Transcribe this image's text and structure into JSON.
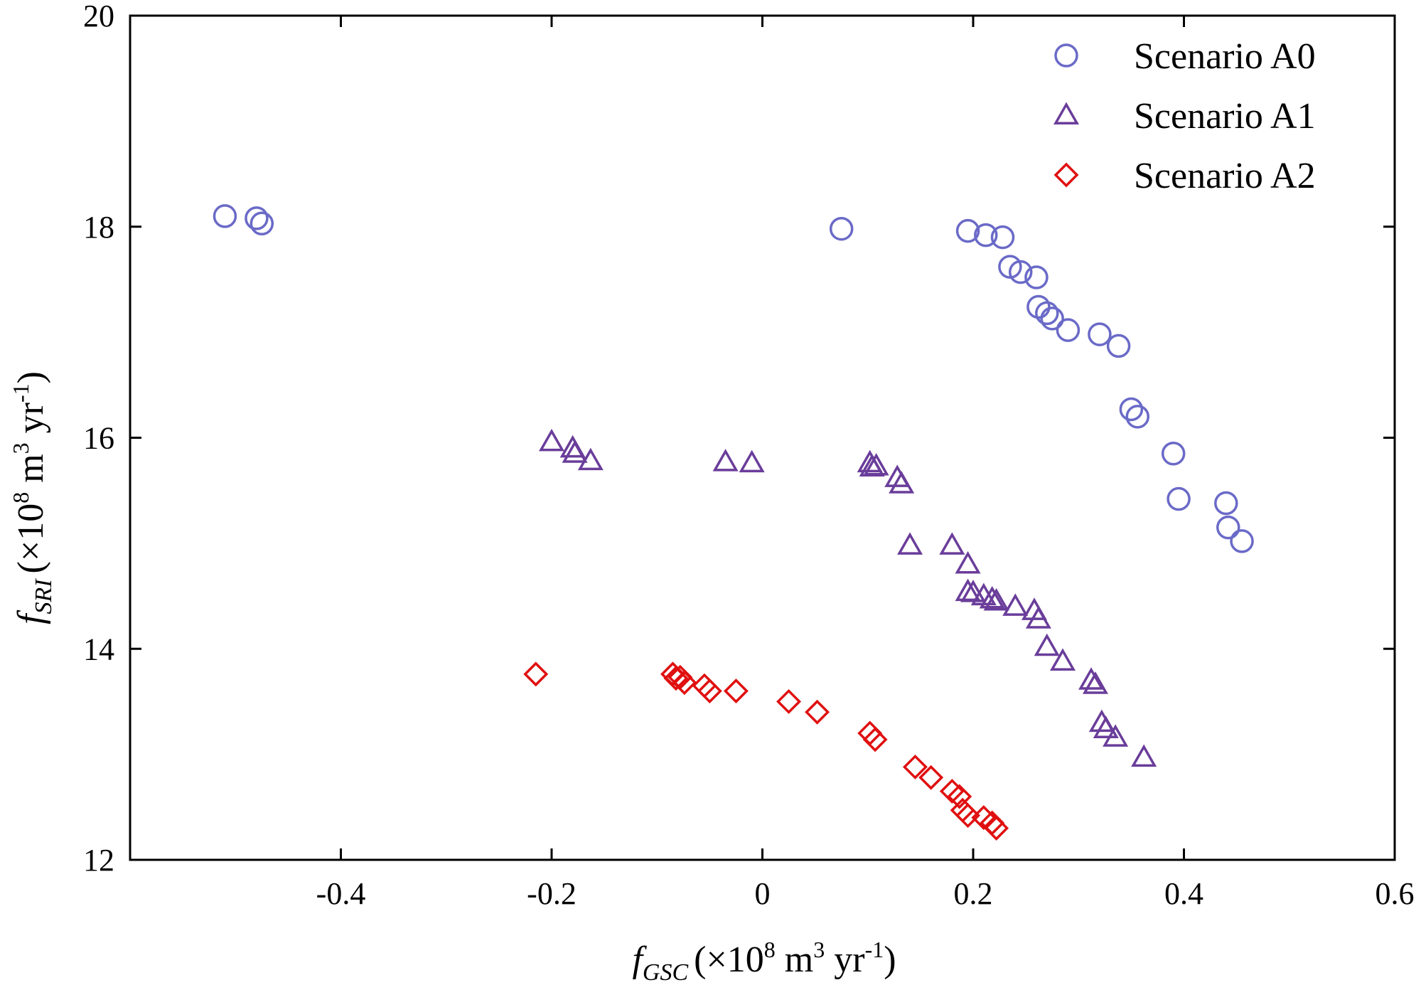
{
  "chart_data": {
    "type": "scatter",
    "x_axis": {
      "symbol": "f",
      "subscript": "GSC",
      "unit_prefix": "(×10",
      "unit_exp": "8",
      "unit_mid": " m",
      "unit_exp2": "3",
      "unit_mid2": " yr",
      "unit_exp3": "-1",
      "unit_suffix": ")",
      "range": [
        -0.6,
        0.6
      ],
      "ticks": [
        -0.4,
        -0.2,
        0,
        0.2,
        0.4,
        0.6
      ],
      "tick_labels": [
        "-0.4",
        "-0.2",
        "0",
        "0.2",
        "0.4",
        "0.6"
      ]
    },
    "y_axis": {
      "symbol": "f",
      "subscript": "SRI",
      "unit_prefix": "(×10",
      "unit_exp": "8",
      "unit_mid": " m",
      "unit_exp2": "3",
      "unit_mid2": " yr",
      "unit_exp3": "-1",
      "unit_suffix": ")",
      "range": [
        12,
        20
      ],
      "ticks": [
        12,
        14,
        16,
        18,
        20
      ],
      "tick_labels": [
        "12",
        "14",
        "16",
        "18",
        "20"
      ]
    },
    "legend_position": "top-right",
    "series": [
      {
        "name": "Scenario A0",
        "marker": "circle",
        "color": "#6a6ac8",
        "points": [
          [
            -0.51,
            18.1
          ],
          [
            -0.48,
            18.08
          ],
          [
            -0.475,
            18.03
          ],
          [
            0.075,
            17.98
          ],
          [
            0.195,
            17.96
          ],
          [
            0.212,
            17.92
          ],
          [
            0.228,
            17.9
          ],
          [
            0.235,
            17.62
          ],
          [
            0.245,
            17.57
          ],
          [
            0.26,
            17.52
          ],
          [
            0.262,
            17.24
          ],
          [
            0.27,
            17.18
          ],
          [
            0.275,
            17.13
          ],
          [
            0.29,
            17.02
          ],
          [
            0.32,
            16.98
          ],
          [
            0.338,
            16.87
          ],
          [
            0.35,
            16.27
          ],
          [
            0.356,
            16.2
          ],
          [
            0.39,
            15.85
          ],
          [
            0.395,
            15.42
          ],
          [
            0.44,
            15.38
          ],
          [
            0.442,
            15.15
          ],
          [
            0.455,
            15.02
          ]
        ]
      },
      {
        "name": "Scenario A1",
        "marker": "triangle",
        "color": "#6a3d9a",
        "points": [
          [
            -0.2,
            15.96
          ],
          [
            -0.18,
            15.9
          ],
          [
            -0.178,
            15.85
          ],
          [
            -0.163,
            15.78
          ],
          [
            -0.035,
            15.77
          ],
          [
            -0.01,
            15.76
          ],
          [
            0.102,
            15.76
          ],
          [
            0.104,
            15.72
          ],
          [
            0.108,
            15.73
          ],
          [
            0.128,
            15.62
          ],
          [
            0.132,
            15.56
          ],
          [
            0.14,
            14.98
          ],
          [
            0.18,
            14.98
          ],
          [
            0.195,
            14.8
          ],
          [
            0.195,
            14.54
          ],
          [
            0.2,
            14.53
          ],
          [
            0.21,
            14.5
          ],
          [
            0.218,
            14.47
          ],
          [
            0.222,
            14.45
          ],
          [
            0.24,
            14.4
          ],
          [
            0.258,
            14.36
          ],
          [
            0.262,
            14.28
          ],
          [
            0.27,
            14.02
          ],
          [
            0.285,
            13.88
          ],
          [
            0.312,
            13.7
          ],
          [
            0.316,
            13.66
          ],
          [
            0.322,
            13.3
          ],
          [
            0.326,
            13.24
          ],
          [
            0.335,
            13.16
          ],
          [
            0.362,
            12.97
          ]
        ]
      },
      {
        "name": "Scenario A2",
        "marker": "diamond",
        "color": "#e01010",
        "points": [
          [
            -0.215,
            13.76
          ],
          [
            -0.085,
            13.76
          ],
          [
            -0.082,
            13.72
          ],
          [
            -0.078,
            13.73
          ],
          [
            -0.074,
            13.68
          ],
          [
            -0.055,
            13.65
          ],
          [
            -0.05,
            13.6
          ],
          [
            -0.025,
            13.6
          ],
          [
            0.025,
            13.5
          ],
          [
            0.052,
            13.4
          ],
          [
            0.102,
            13.2
          ],
          [
            0.107,
            13.14
          ],
          [
            0.145,
            12.88
          ],
          [
            0.16,
            12.78
          ],
          [
            0.18,
            12.65
          ],
          [
            0.187,
            12.6
          ],
          [
            0.19,
            12.47
          ],
          [
            0.195,
            12.42
          ],
          [
            0.21,
            12.4
          ],
          [
            0.218,
            12.35
          ],
          [
            0.222,
            12.3
          ]
        ]
      }
    ]
  }
}
